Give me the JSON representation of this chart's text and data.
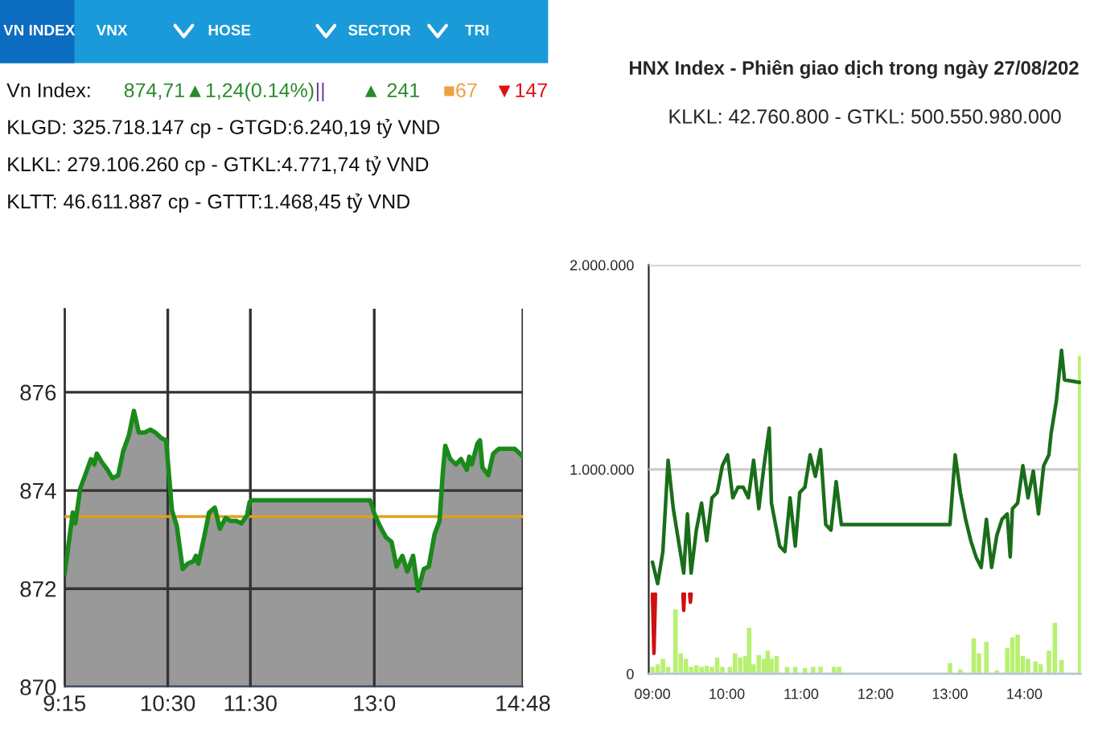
{
  "chart_data": [
    {
      "type": "area",
      "annotations": [
        "VN INDEX",
        "VNX",
        "HOSE",
        "SECTOR",
        "TRI",
        "Vn Index:",
        "874,71▲1,24(0.14%)",
        "||",
        "▲ 241",
        "■67",
        "▼147",
        "KLGD: 325.718.147 cp - GTGD:6.240,19 tỷ VND",
        "KLKL: 279.106.260 cp - GTKL:4.771,74 tỷ VND",
        "KLTT: 46.611.887 cp - GTTT:1.468,45 tỷ VND"
      ],
      "x": [
        9.25,
        9.31,
        9.35,
        9.38,
        9.44,
        9.51,
        9.57,
        9.61,
        9.64,
        9.7,
        9.77,
        9.83,
        9.9,
        9.96,
        10.03,
        10.09,
        10.15,
        10.22,
        10.29,
        10.35,
        10.42,
        10.48,
        10.55,
        10.61,
        10.68,
        10.74,
        10.81,
        10.84,
        10.87,
        10.94,
        11.0,
        11.07,
        11.13,
        11.2,
        11.26,
        11.33,
        11.39,
        11.46,
        11.49,
        11.52,
        12.95,
        13.01,
        13.07,
        13.14,
        13.21,
        13.27,
        13.34,
        13.4,
        13.47,
        13.53,
        13.6,
        13.66,
        13.73,
        13.79,
        13.83,
        13.86,
        13.92,
        13.99,
        14.05,
        14.12,
        14.15,
        14.18,
        14.25,
        14.28,
        14.31,
        14.38,
        14.44,
        14.51,
        14.7,
        14.8
      ],
      "series": [
        {
          "color": "#1a8a1a",
          "values": [
            872.29,
            873.05,
            873.55,
            873.33,
            874.04,
            874.36,
            874.64,
            874.53,
            874.75,
            874.58,
            874.42,
            874.25,
            874.31,
            874.8,
            875.13,
            875.62,
            875.18,
            875.18,
            875.24,
            875.18,
            875.07,
            875.02,
            873.6,
            873.27,
            872.4,
            872.51,
            872.56,
            872.67,
            872.51,
            873.05,
            873.55,
            873.65,
            873.22,
            873.44,
            873.38,
            873.38,
            873.33,
            873.49,
            873.76,
            873.8,
            873.8,
            873.49,
            873.27,
            873.05,
            872.95,
            872.45,
            872.67,
            872.35,
            872.67,
            871.96,
            872.4,
            872.45,
            873.11,
            873.38,
            874.36,
            874.91,
            874.64,
            874.53,
            874.64,
            874.42,
            874.69,
            874.53,
            874.96,
            875.02,
            874.47,
            874.31,
            874.75,
            874.85,
            874.85,
            874.69
          ]
        }
      ],
      "xlim": [
        9.25,
        14.8
      ],
      "xticks": [
        {
          "value": 9.25,
          "label": "9:15"
        },
        {
          "value": 10.5,
          "label": "10:30"
        },
        {
          "value": 11.5,
          "label": "11:30"
        },
        {
          "value": 13,
          "label": "13:0"
        },
        {
          "value": 14.8,
          "label": "14:48"
        }
      ],
      "ylim": [
        870,
        877.7
      ],
      "yticks": [
        870,
        872,
        874,
        876
      ],
      "ref_lines": [
        {
          "axis": "y",
          "value": 873.47,
          "color": "#e0a020"
        }
      ],
      "grid": true
    },
    {
      "type": "line",
      "title": "HNX Index - Phiên giao dịch trong ngày 27/08/202",
      "subtitle": "KLKL: 42.760.800 - GTKL: 500.550.980.000",
      "series": [
        {
          "type": "bar",
          "color": "#b8f070",
          "x": [
            9.0,
            9.07,
            9.14,
            9.21,
            9.31,
            9.38,
            9.45,
            9.52,
            9.59,
            9.66,
            9.73,
            9.8,
            9.87,
            9.94,
            10.04,
            10.11,
            10.18,
            10.25,
            10.3,
            10.36,
            10.43,
            10.5,
            10.55,
            10.6,
            10.67,
            10.81,
            10.92,
            11.05,
            11.16,
            11.26,
            11.44,
            11.51,
            13.0,
            13.14,
            13.32,
            13.39,
            13.49,
            13.63,
            13.77,
            13.84,
            13.91,
            13.98,
            14.05,
            14.15,
            14.22,
            14.33,
            14.41,
            14.5,
            14.75
          ],
          "values": [
            34000,
            47000,
            73000,
            34000,
            315000,
            100000,
            73000,
            34000,
            42000,
            34000,
            39000,
            34000,
            79000,
            34000,
            34000,
            100000,
            79000,
            87000,
            226000,
            47000,
            92000,
            73000,
            113000,
            73000,
            87000,
            34000,
            34000,
            29000,
            34000,
            34000,
            34000,
            34000,
            52000,
            21000,
            173000,
            100000,
            157000,
            16000,
            126000,
            178000,
            192000,
            87000,
            73000,
            60000,
            47000,
            113000,
            249000,
            68000,
            1556000
          ]
        },
        {
          "type": "line",
          "color": "#1a6e1a",
          "x": [
            9.0,
            9.07,
            9.14,
            9.21,
            9.28,
            9.35,
            9.42,
            9.47,
            9.52,
            9.59,
            9.66,
            9.73,
            9.8,
            9.87,
            9.94,
            10.01,
            10.08,
            10.15,
            10.22,
            10.29,
            10.36,
            10.43,
            10.5,
            10.57,
            10.6,
            10.71,
            10.78,
            10.85,
            10.92,
            10.98,
            11.05,
            11.12,
            11.19,
            11.26,
            11.33,
            11.4,
            11.47,
            11.54,
            13.0,
            13.07,
            13.14,
            13.21,
            13.28,
            13.35,
            13.42,
            13.49,
            13.56,
            13.63,
            13.7,
            13.77,
            13.81,
            13.84,
            13.91,
            13.98,
            14.05,
            14.12,
            14.19,
            14.26,
            14.33,
            14.36,
            14.43,
            14.5,
            14.54,
            14.75
          ],
          "values": [
            546000,
            441000,
            598000,
            1045000,
            808000,
            651000,
            493000,
            782000,
            493000,
            703000,
            835000,
            651000,
            861000,
            887000,
            1018000,
            1071000,
            861000,
            913000,
            913000,
            861000,
            1045000,
            808000,
            1018000,
            1202000,
            835000,
            625000,
            598000,
            861000,
            625000,
            887000,
            913000,
            1071000,
            966000,
            1097000,
            730000,
            703000,
            940000,
            730000,
            730000,
            1071000,
            887000,
            756000,
            651000,
            572000,
            520000,
            756000,
            520000,
            677000,
            756000,
            782000,
            572000,
            808000,
            835000,
            1018000,
            861000,
            992000,
            782000,
            1018000,
            1071000,
            1176000,
            1333000,
            1583000,
            1438000,
            1425000
          ]
        },
        {
          "type": "line",
          "color": "#d01010",
          "x": [
            9.0,
            9.02,
            9.04,
            9.05,
            9.41,
            9.42,
            9.43,
            9.44,
            9.5,
            9.51,
            9.52
          ],
          "values": [
            390000,
            100000,
            390000,
            null,
            390000,
            310000,
            390000,
            null,
            390000,
            350000,
            390000
          ]
        }
      ],
      "xlim": [
        8.95,
        14.76
      ],
      "xticks": [
        {
          "value": 9,
          "label": "09:00"
        },
        {
          "value": 10,
          "label": "10:00"
        },
        {
          "value": 11,
          "label": "11:00"
        },
        {
          "value": 12,
          "label": "12:00"
        },
        {
          "value": 13,
          "label": "13:00"
        },
        {
          "value": 14,
          "label": "14:00"
        }
      ],
      "ylim": [
        0,
        2000000
      ],
      "yticks": [
        {
          "value": 0,
          "label": "0"
        },
        {
          "value": 1000000,
          "label": "1.000.000"
        },
        {
          "value": 2000000,
          "label": "2.000.000"
        }
      ],
      "grid": "y"
    }
  ]
}
